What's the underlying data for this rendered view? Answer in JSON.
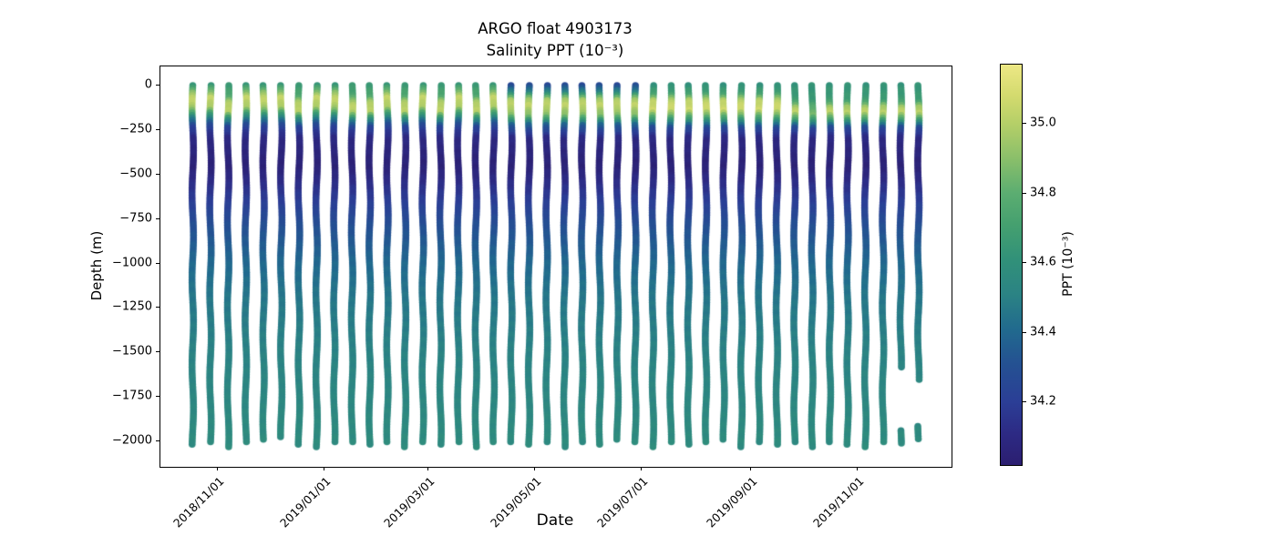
{
  "title": {
    "line1": "ARGO float 4903173",
    "line2": "Salinity PPT (10⁻³)"
  },
  "axes": {
    "xlabel": "Date",
    "ylabel": "Depth (m)"
  },
  "chart_data": {
    "type": "scatter",
    "title": "ARGO float 4903173",
    "subtitle": "Salinity PPT (10⁻³)",
    "xlabel": "Date",
    "ylabel": "Depth (m)",
    "grid": false,
    "legend": "none",
    "ylim": [
      -2140,
      105
    ],
    "x_ticks": [
      {
        "label": "2018/11/01",
        "day": 0
      },
      {
        "label": "2019/01/01",
        "day": 61
      },
      {
        "label": "2019/03/01",
        "day": 120
      },
      {
        "label": "2019/05/01",
        "day": 181
      },
      {
        "label": "2019/07/01",
        "day": 242
      },
      {
        "label": "2019/09/01",
        "day": 304
      },
      {
        "label": "2019/11/01",
        "day": 365
      }
    ],
    "y_ticks": [
      {
        "label": "0",
        "depth": 0
      },
      {
        "label": "−250",
        "depth": -250
      },
      {
        "label": "−500",
        "depth": -500
      },
      {
        "label": "−750",
        "depth": -750
      },
      {
        "label": "−1000",
        "depth": -1000
      },
      {
        "label": "−1250",
        "depth": -1250
      },
      {
        "label": "−1500",
        "depth": -1500
      },
      {
        "label": "−1750",
        "depth": -1750
      },
      {
        "label": "−2000",
        "depth": -2000
      }
    ],
    "colorbar": {
      "label": "PPT (10⁻³)",
      "cmap": "haline",
      "vmin": 34.02,
      "vmax": 35.17,
      "tick_labels": [
        "34.2",
        "34.4",
        "34.6",
        "34.8",
        "35.0"
      ],
      "tick_values": [
        34.2,
        34.4,
        34.6,
        34.8,
        35.0
      ],
      "cmap_stops": [
        [
          34.02,
          "#2b1e70"
        ],
        [
          34.11,
          "#2d2a84"
        ],
        [
          34.2,
          "#2b3e96"
        ],
        [
          34.31,
          "#245192"
        ],
        [
          34.41,
          "#216a8e"
        ],
        [
          34.51,
          "#2b8384"
        ],
        [
          34.61,
          "#319179"
        ],
        [
          34.71,
          "#45a06f"
        ],
        [
          34.8,
          "#5bad71"
        ],
        [
          34.9,
          "#8abf6a"
        ],
        [
          35.0,
          "#b5cf68"
        ],
        [
          35.08,
          "#d3da6e"
        ],
        [
          35.17,
          "#ede885"
        ]
      ]
    },
    "profile_interval_days": 10.1,
    "first_profile_day": -15,
    "profile_templates": {
      "A": [
        [
          0,
          34.63
        ],
        [
          -35,
          34.85
        ],
        [
          -75,
          35.06
        ],
        [
          -130,
          34.96
        ],
        [
          -180,
          34.55
        ],
        [
          -230,
          34.24
        ],
        [
          -300,
          34.1
        ]
      ],
      "A2": [
        [
          0,
          34.66
        ],
        [
          -60,
          34.74
        ],
        [
          -105,
          35.0
        ],
        [
          -150,
          35.03
        ],
        [
          -195,
          34.58
        ],
        [
          -240,
          34.24
        ],
        [
          -300,
          34.1
        ]
      ],
      "B": [
        [
          0,
          34.26
        ],
        [
          -40,
          34.5
        ],
        [
          -80,
          34.95
        ],
        [
          -115,
          35.04
        ],
        [
          -175,
          34.88
        ],
        [
          -225,
          34.38
        ],
        [
          -300,
          34.1
        ]
      ],
      "C": [
        [
          0,
          34.62
        ],
        [
          -90,
          34.68
        ],
        [
          -125,
          34.95
        ],
        [
          -155,
          35.03
        ],
        [
          -190,
          34.78
        ],
        [
          -240,
          34.28
        ],
        [
          -300,
          34.1
        ]
      ],
      "C2": [
        [
          0,
          34.62
        ],
        [
          -90,
          34.66
        ],
        [
          -130,
          34.8
        ],
        [
          -165,
          34.87
        ],
        [
          -200,
          34.68
        ],
        [
          -245,
          34.26
        ],
        [
          -300,
          34.1
        ]
      ],
      "D": [
        [
          0,
          34.6
        ],
        [
          -50,
          34.7
        ],
        [
          -90,
          35.02
        ],
        [
          -140,
          35.07
        ],
        [
          -190,
          34.72
        ],
        [
          -240,
          34.28
        ],
        [
          -300,
          34.1
        ]
      ]
    },
    "deep_profile": [
      [
        -300,
        34.1
      ],
      [
        -460,
        34.05
      ],
      [
        -620,
        34.17
      ],
      [
        -800,
        34.3
      ],
      [
        -1000,
        34.4
      ],
      [
        -1200,
        34.46
      ],
      [
        -1500,
        34.51
      ],
      [
        -1800,
        34.54
      ],
      [
        -2060,
        34.57
      ]
    ],
    "profiles": [
      {
        "date": "2018-10-17",
        "t": "A",
        "seg": [
          [
            0,
            -2020
          ]
        ]
      },
      {
        "date": "2018-10-27",
        "t": "A",
        "seg": [
          [
            0,
            -2005
          ]
        ]
      },
      {
        "date": "2018-11-06",
        "t": "A2",
        "seg": [
          [
            0,
            -2030
          ]
        ]
      },
      {
        "date": "2018-11-16",
        "t": "A",
        "seg": [
          [
            0,
            -2010
          ]
        ]
      },
      {
        "date": "2018-11-26",
        "t": "A",
        "seg": [
          [
            0,
            -2000
          ]
        ]
      },
      {
        "date": "2018-12-06",
        "t": "A",
        "seg": [
          [
            0,
            -1975
          ]
        ]
      },
      {
        "date": "2018-12-16",
        "t": "A2",
        "seg": [
          [
            0,
            -2020
          ]
        ]
      },
      {
        "date": "2018-12-26",
        "t": "A",
        "seg": [
          [
            0,
            -2035
          ]
        ]
      },
      {
        "date": "2019-01-05",
        "t": "A",
        "seg": [
          [
            0,
            -2010
          ]
        ]
      },
      {
        "date": "2019-01-15",
        "t": "A2",
        "seg": [
          [
            0,
            -2015
          ]
        ]
      },
      {
        "date": "2019-01-25",
        "t": "A2",
        "seg": [
          [
            0,
            -2025
          ]
        ]
      },
      {
        "date": "2019-02-04",
        "t": "A",
        "seg": [
          [
            0,
            -2005
          ]
        ]
      },
      {
        "date": "2019-02-14",
        "t": "A2",
        "seg": [
          [
            0,
            -2030
          ]
        ]
      },
      {
        "date": "2019-02-24",
        "t": "A",
        "seg": [
          [
            0,
            -2010
          ]
        ]
      },
      {
        "date": "2019-03-06",
        "t": "A2",
        "seg": [
          [
            0,
            -2020
          ]
        ]
      },
      {
        "date": "2019-03-16",
        "t": "A",
        "seg": [
          [
            0,
            -2015
          ]
        ]
      },
      {
        "date": "2019-03-26",
        "t": "A2",
        "seg": [
          [
            0,
            -2035
          ]
        ]
      },
      {
        "date": "2019-04-05",
        "t": "A",
        "seg": [
          [
            0,
            -2010
          ]
        ]
      },
      {
        "date": "2019-04-15",
        "t": "B",
        "seg": [
          [
            0,
            -2005
          ]
        ]
      },
      {
        "date": "2019-04-25",
        "t": "B",
        "seg": [
          [
            0,
            -2020
          ]
        ]
      },
      {
        "date": "2019-05-05",
        "t": "B",
        "seg": [
          [
            0,
            -2015
          ]
        ]
      },
      {
        "date": "2019-05-15",
        "t": "B",
        "seg": [
          [
            0,
            -2030
          ]
        ]
      },
      {
        "date": "2019-05-25",
        "t": "B",
        "seg": [
          [
            0,
            -2010
          ]
        ]
      },
      {
        "date": "2019-06-04",
        "t": "B",
        "seg": [
          [
            0,
            -2020
          ]
        ]
      },
      {
        "date": "2019-06-14",
        "t": "B",
        "seg": [
          [
            0,
            -2000
          ]
        ]
      },
      {
        "date": "2019-06-24",
        "t": "B",
        "seg": [
          [
            0,
            -2015
          ]
        ]
      },
      {
        "date": "2019-07-04",
        "t": "D",
        "seg": [
          [
            0,
            -2035
          ]
        ]
      },
      {
        "date": "2019-07-14",
        "t": "D",
        "seg": [
          [
            0,
            -2010
          ]
        ]
      },
      {
        "date": "2019-07-24",
        "t": "D",
        "seg": [
          [
            0,
            -2020
          ]
        ]
      },
      {
        "date": "2019-08-03",
        "t": "D",
        "seg": [
          [
            0,
            -2015
          ]
        ]
      },
      {
        "date": "2019-08-13",
        "t": "D",
        "seg": [
          [
            0,
            -2000
          ]
        ]
      },
      {
        "date": "2019-08-23",
        "t": "D",
        "seg": [
          [
            0,
            -2030
          ]
        ]
      },
      {
        "date": "2019-09-02",
        "t": "D",
        "seg": [
          [
            0,
            -2010
          ]
        ]
      },
      {
        "date": "2019-09-12",
        "t": "D",
        "seg": [
          [
            0,
            -2020
          ]
        ]
      },
      {
        "date": "2019-09-22",
        "t": "C",
        "seg": [
          [
            0,
            -2015
          ]
        ]
      },
      {
        "date": "2019-10-02",
        "t": "C2",
        "seg": [
          [
            0,
            -2035
          ]
        ]
      },
      {
        "date": "2019-10-12",
        "t": "C",
        "seg": [
          [
            0,
            -2005
          ]
        ]
      },
      {
        "date": "2019-10-22",
        "t": "C",
        "seg": [
          [
            0,
            -2020
          ]
        ]
      },
      {
        "date": "2019-11-01",
        "t": "C",
        "seg": [
          [
            0,
            -2035
          ]
        ]
      },
      {
        "date": "2019-11-11",
        "t": "C",
        "seg": [
          [
            0,
            -2010
          ]
        ]
      },
      {
        "date": "2019-11-21",
        "t": "C",
        "seg": [
          [
            0,
            -1595
          ],
          [
            -1940,
            -2010
          ]
        ]
      },
      {
        "date": "2019-12-01",
        "t": "C",
        "seg": [
          [
            0,
            -1660
          ],
          [
            -1915,
            -1985
          ]
        ]
      }
    ]
  }
}
